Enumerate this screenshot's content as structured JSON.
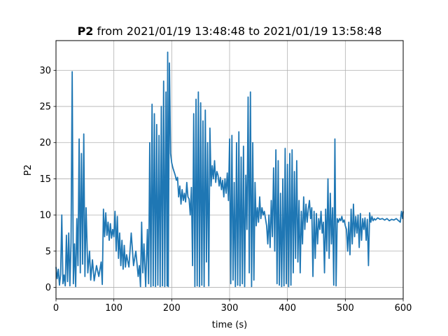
{
  "chart_data": {
    "type": "line",
    "title": {
      "bold": "P2",
      "rest": " from 2021/01/19 13:48:48 to 2021/01/19 13:58:48"
    },
    "xlabel": "time (s)",
    "ylabel": "P2",
    "xlim": [
      0,
      600
    ],
    "ylim": [
      -1.6,
      34.1
    ],
    "xticks": [
      0,
      100,
      200,
      300,
      400,
      500,
      600
    ],
    "yticks": [
      0,
      5,
      10,
      15,
      20,
      25,
      30
    ],
    "grid": true,
    "legend": "none",
    "series": [
      {
        "color": "#1f77b4",
        "points": [
          [
            0,
            2.8
          ],
          [
            2,
            1.2
          ],
          [
            4,
            2.5
          ],
          [
            6,
            0.3
          ],
          [
            8,
            1.8
          ],
          [
            10,
            10.0
          ],
          [
            12,
            0.5
          ],
          [
            14,
            1.7
          ],
          [
            16,
            0.2
          ],
          [
            18,
            7.2
          ],
          [
            20,
            0.8
          ],
          [
            22,
            7.5
          ],
          [
            24,
            0.2
          ],
          [
            26,
            6.2
          ],
          [
            28,
            29.8
          ],
          [
            30,
            0.5
          ],
          [
            32,
            6.0
          ],
          [
            34,
            0.1
          ],
          [
            36,
            9.5
          ],
          [
            38,
            3.0
          ],
          [
            40,
            20.5
          ],
          [
            42,
            2.0
          ],
          [
            44,
            18.5
          ],
          [
            46,
            3.2
          ],
          [
            48,
            21.2
          ],
          [
            50,
            1.5
          ],
          [
            52,
            11.0
          ],
          [
            55,
            2.0
          ],
          [
            58,
            5.0
          ],
          [
            60,
            1.0
          ],
          [
            63,
            3.8
          ],
          [
            66,
            0.9
          ],
          [
            70,
            3.0
          ],
          [
            74,
            1.5
          ],
          [
            78,
            3.5
          ],
          [
            80,
            0.4
          ],
          [
            82,
            10.8
          ],
          [
            84,
            7.0
          ],
          [
            86,
            10.3
          ],
          [
            88,
            7.2
          ],
          [
            90,
            9.0
          ],
          [
            92,
            6.5
          ],
          [
            94,
            8.8
          ],
          [
            96,
            6.8
          ],
          [
            98,
            8.0
          ],
          [
            100,
            7.0
          ],
          [
            102,
            10.5
          ],
          [
            104,
            5.0
          ],
          [
            106,
            9.8
          ],
          [
            108,
            4.0
          ],
          [
            110,
            7.5
          ],
          [
            112,
            3.0
          ],
          [
            114,
            6.5
          ],
          [
            116,
            2.5
          ],
          [
            118,
            5.8
          ],
          [
            120,
            2.8
          ],
          [
            122,
            4.5
          ],
          [
            126,
            2.8
          ],
          [
            130,
            7.5
          ],
          [
            134,
            3.0
          ],
          [
            138,
            5.0
          ],
          [
            142,
            1.5
          ],
          [
            144,
            3.0
          ],
          [
            146,
            0.1
          ],
          [
            148,
            9.0
          ],
          [
            150,
            2.0
          ],
          [
            152,
            6.0
          ],
          [
            155,
            0.1
          ],
          [
            158,
            8.0
          ],
          [
            160,
            0.5
          ],
          [
            162,
            20.0
          ],
          [
            164,
            0.1
          ],
          [
            166,
            25.3
          ],
          [
            168,
            0.2
          ],
          [
            170,
            24.0
          ],
          [
            172,
            0.1
          ],
          [
            174,
            22.5
          ],
          [
            176,
            0.3
          ],
          [
            178,
            21.0
          ],
          [
            180,
            0.1
          ],
          [
            182,
            25.0
          ],
          [
            184,
            0.2
          ],
          [
            186,
            28.5
          ],
          [
            188,
            0.1
          ],
          [
            190,
            27.0
          ],
          [
            192,
            0.2
          ],
          [
            193,
            32.5
          ],
          [
            194,
            0.1
          ],
          [
            196,
            31.0
          ],
          [
            198,
            18.5
          ],
          [
            200,
            17.2
          ],
          [
            202,
            16.5
          ],
          [
            204,
            16.0
          ],
          [
            206,
            15.5
          ],
          [
            208,
            14.8
          ],
          [
            210,
            15.2
          ],
          [
            212,
            12.5
          ],
          [
            214,
            14.0
          ],
          [
            216,
            11.5
          ],
          [
            218,
            13.5
          ],
          [
            220,
            12.0
          ],
          [
            222,
            13.0
          ],
          [
            224,
            11.8
          ],
          [
            226,
            14.5
          ],
          [
            228,
            12.5
          ],
          [
            230,
            12.2
          ],
          [
            232,
            10.0
          ],
          [
            234,
            13.8
          ],
          [
            236,
            3.0
          ],
          [
            238,
            24.0
          ],
          [
            240,
            0.1
          ],
          [
            242,
            26.0
          ],
          [
            244,
            0.2
          ],
          [
            246,
            27.0
          ],
          [
            248,
            0.1
          ],
          [
            250,
            25.5
          ],
          [
            252,
            0.3
          ],
          [
            254,
            23.0
          ],
          [
            256,
            0.1
          ],
          [
            258,
            24.5
          ],
          [
            260,
            3.5
          ],
          [
            262,
            20.0
          ],
          [
            264,
            0.2
          ],
          [
            266,
            22.0
          ],
          [
            268,
            14.0
          ],
          [
            270,
            16.8
          ],
          [
            272,
            15.0
          ],
          [
            274,
            17.5
          ],
          [
            276,
            14.5
          ],
          [
            278,
            16.0
          ],
          [
            280,
            15.5
          ],
          [
            282,
            14.0
          ],
          [
            284,
            15.2
          ],
          [
            286,
            13.5
          ],
          [
            288,
            14.8
          ],
          [
            290,
            12.5
          ],
          [
            292,
            15.0
          ],
          [
            294,
            13.0
          ],
          [
            296,
            15.8
          ],
          [
            298,
            12.0
          ],
          [
            300,
            20.5
          ],
          [
            302,
            0.5
          ],
          [
            304,
            21.0
          ],
          [
            306,
            1.0
          ],
          [
            308,
            14.5
          ],
          [
            310,
            0.1
          ],
          [
            312,
            20.0
          ],
          [
            314,
            0.3
          ],
          [
            316,
            21.5
          ],
          [
            318,
            0.2
          ],
          [
            320,
            18.0
          ],
          [
            322,
            0.5
          ],
          [
            324,
            19.5
          ],
          [
            326,
            0.1
          ],
          [
            328,
            15.5
          ],
          [
            330,
            8.0
          ],
          [
            332,
            26.3
          ],
          [
            334,
            2.0
          ],
          [
            336,
            27.0
          ],
          [
            338,
            0.1
          ],
          [
            340,
            20.0
          ],
          [
            342,
            1.0
          ],
          [
            344,
            14.5
          ],
          [
            346,
            8.5
          ],
          [
            348,
            11.0
          ],
          [
            350,
            9.0
          ],
          [
            352,
            12.5
          ],
          [
            354,
            9.5
          ],
          [
            356,
            11.0
          ],
          [
            358,
            10.0
          ],
          [
            360,
            10.5
          ],
          [
            362,
            9.5
          ],
          [
            364,
            8.5
          ],
          [
            366,
            6.0
          ],
          [
            368,
            10.0
          ],
          [
            370,
            5.5
          ],
          [
            372,
            12.0
          ],
          [
            374,
            7.0
          ],
          [
            376,
            16.5
          ],
          [
            378,
            5.0
          ],
          [
            380,
            19.0
          ],
          [
            382,
            0.5
          ],
          [
            384,
            17.5
          ],
          [
            386,
            0.3
          ],
          [
            388,
            13.0
          ],
          [
            390,
            0.1
          ],
          [
            392,
            15.0
          ],
          [
            394,
            0.2
          ],
          [
            396,
            19.2
          ],
          [
            398,
            0.5
          ],
          [
            400,
            17.0
          ],
          [
            402,
            0.1
          ],
          [
            404,
            18.5
          ],
          [
            406,
            0.3
          ],
          [
            408,
            19.0
          ],
          [
            410,
            2.0
          ],
          [
            412,
            16.0
          ],
          [
            414,
            4.0
          ],
          [
            416,
            17.5
          ],
          [
            418,
            3.5
          ],
          [
            420,
            12.0
          ],
          [
            422,
            2.0
          ],
          [
            424,
            10.5
          ],
          [
            426,
            6.0
          ],
          [
            428,
            12.5
          ],
          [
            430,
            8.0
          ],
          [
            432,
            11.5
          ],
          [
            434,
            9.0
          ],
          [
            436,
            10.8
          ],
          [
            438,
            12.0
          ],
          [
            440,
            9.5
          ],
          [
            442,
            11.0
          ],
          [
            444,
            1.5
          ],
          [
            446,
            10.5
          ],
          [
            448,
            4.0
          ],
          [
            450,
            10.2
          ],
          [
            452,
            6.0
          ],
          [
            454,
            9.5
          ],
          [
            456,
            8.0
          ],
          [
            458,
            10.5
          ],
          [
            460,
            7.5
          ],
          [
            462,
            9.0
          ],
          [
            464,
            2.0
          ],
          [
            466,
            10.8
          ],
          [
            468,
            5.0
          ],
          [
            470,
            15.0
          ],
          [
            472,
            4.0
          ],
          [
            474,
            13.0
          ],
          [
            476,
            6.0
          ],
          [
            478,
            11.0
          ],
          [
            480,
            0.3
          ],
          [
            482,
            20.5
          ],
          [
            484,
            0.2
          ],
          [
            486,
            9.5
          ],
          [
            488,
            9.0
          ],
          [
            490,
            9.5
          ],
          [
            492,
            9.2
          ],
          [
            494,
            9.8
          ],
          [
            496,
            9.0
          ],
          [
            498,
            9.3
          ],
          [
            500,
            8.5
          ],
          [
            502,
            8.0
          ],
          [
            504,
            5.0
          ],
          [
            506,
            9.0
          ],
          [
            508,
            4.5
          ],
          [
            510,
            10.8
          ],
          [
            512,
            6.0
          ],
          [
            514,
            11.5
          ],
          [
            516,
            7.0
          ],
          [
            518,
            9.8
          ],
          [
            520,
            7.5
          ],
          [
            522,
            10.0
          ],
          [
            524,
            5.5
          ],
          [
            526,
            10.2
          ],
          [
            528,
            6.5
          ],
          [
            530,
            9.5
          ],
          [
            532,
            8.0
          ],
          [
            534,
            9.6
          ],
          [
            536,
            6.5
          ],
          [
            538,
            9.4
          ],
          [
            540,
            3.0
          ],
          [
            542,
            10.3
          ],
          [
            544,
            9.0
          ],
          [
            546,
            9.8
          ],
          [
            548,
            9.2
          ],
          [
            550,
            9.5
          ],
          [
            552,
            9.3
          ],
          [
            556,
            9.6
          ],
          [
            560,
            9.4
          ],
          [
            564,
            9.5
          ],
          [
            568,
            9.3
          ],
          [
            572,
            9.5
          ],
          [
            576,
            9.2
          ],
          [
            580,
            9.4
          ],
          [
            584,
            9.3
          ],
          [
            588,
            9.5
          ],
          [
            592,
            9.2
          ],
          [
            595,
            9.0
          ],
          [
            597,
            10.5
          ],
          [
            599,
            9.5
          ],
          [
            600,
            10.5
          ]
        ]
      }
    ]
  }
}
